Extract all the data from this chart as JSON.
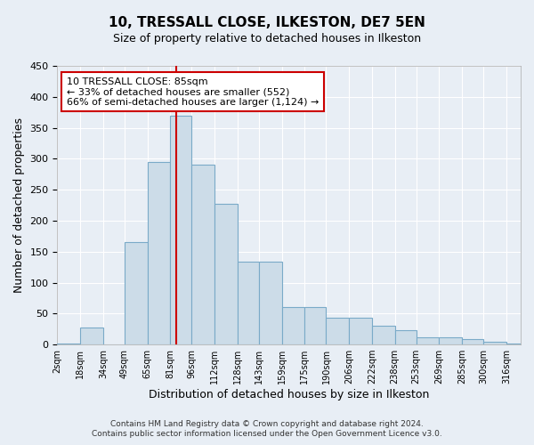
{
  "title": "10, TRESSALL CLOSE, ILKESTON, DE7 5EN",
  "subtitle": "Size of property relative to detached houses in Ilkeston",
  "xlabel": "Distribution of detached houses by size in Ilkeston",
  "ylabel": "Number of detached properties",
  "bar_color": "#ccdce8",
  "bar_edge_color": "#7aaac8",
  "bg_color": "#e8eef5",
  "grid_color": "#ffffff",
  "vline_x": 85,
  "vline_color": "#cc0000",
  "annotation_title": "10 TRESSALL CLOSE: 85sqm",
  "annotation_line1": "← 33% of detached houses are smaller (552)",
  "annotation_line2": "66% of semi-detached houses are larger (1,124) →",
  "annotation_box_color": "#ffffff",
  "annotation_box_edge": "#cc0000",
  "footer1": "Contains HM Land Registry data © Crown copyright and database right 2024.",
  "footer2": "Contains public sector information licensed under the Open Government Licence v3.0.",
  "bins": [
    2,
    18,
    34,
    49,
    65,
    81,
    96,
    112,
    128,
    143,
    159,
    175,
    190,
    206,
    222,
    238,
    253,
    269,
    285,
    300,
    316
  ],
  "counts": [
    1,
    27,
    0,
    166,
    295,
    370,
    290,
    227,
    134,
    134,
    60,
    60,
    43,
    43,
    30,
    23,
    12,
    12,
    9,
    5,
    2
  ],
  "ylim": [
    0,
    450
  ],
  "yticks": [
    0,
    50,
    100,
    150,
    200,
    250,
    300,
    350,
    400,
    450
  ],
  "xlim_left": 2,
  "xlim_right": 326
}
